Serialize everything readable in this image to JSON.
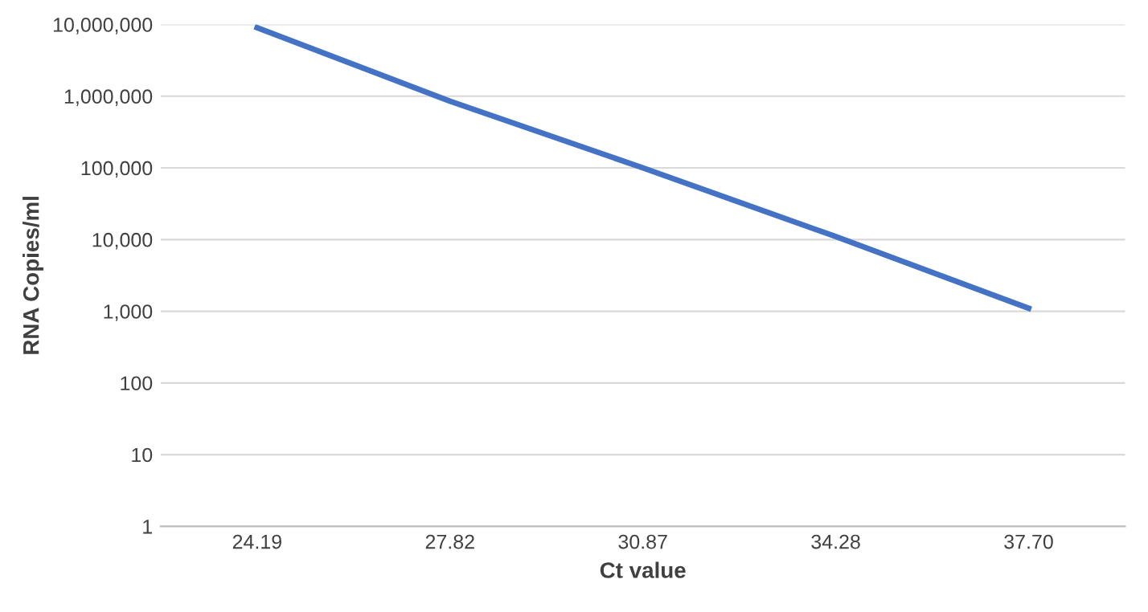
{
  "chart_data": {
    "type": "line",
    "xlabel": "Ct value",
    "ylabel": "RNA Copies/ml",
    "categories": [
      "24.19",
      "27.82",
      "30.87",
      "34.28",
      "37.70"
    ],
    "series": [
      {
        "color": "#4472c4",
        "values": [
          9000000,
          850000,
          100000,
          11000,
          1100
        ]
      }
    ],
    "log": true,
    "ylim": [
      1,
      10000000
    ],
    "yticks": [
      {
        "value": 1,
        "label": "1"
      },
      {
        "value": 10,
        "label": "10"
      },
      {
        "value": 100,
        "label": "100"
      },
      {
        "value": 1000,
        "label": "1,000"
      },
      {
        "value": 10000,
        "label": "10,000"
      },
      {
        "value": 100000,
        "label": "100,000"
      },
      {
        "value": 1000000,
        "label": "1,000,000"
      },
      {
        "value": 10000000,
        "label": "10,000,000"
      }
    ],
    "grid": "y",
    "legend": false,
    "marker": "none",
    "line_style": "solid"
  }
}
